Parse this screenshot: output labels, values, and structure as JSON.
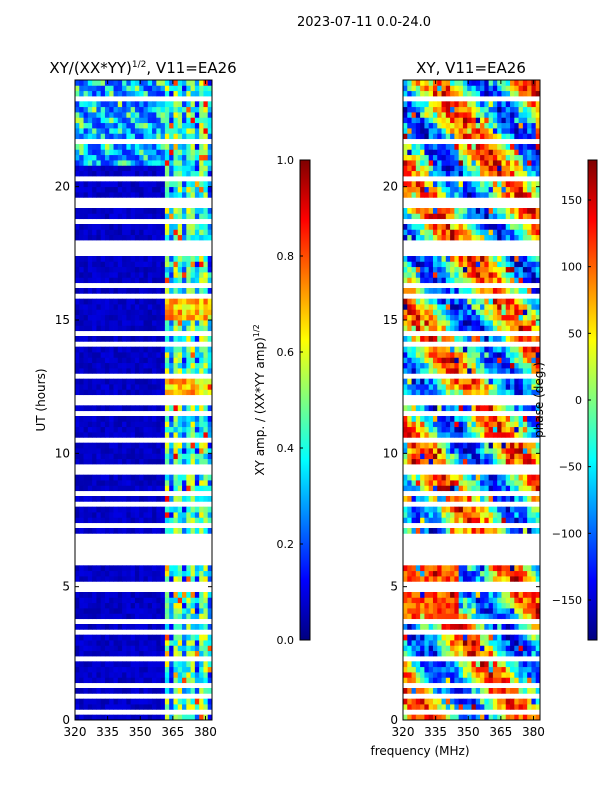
{
  "suptitle": "2023-07-11 0.0-24.0",
  "shared_xlabel": "frequency (MHz)",
  "colormap": [
    "#00007f",
    "#0000ff",
    "#007fff",
    "#00ffff",
    "#7fff7f",
    "#ffff00",
    "#ff7f00",
    "#ff0000",
    "#7f0000"
  ],
  "chart_data": [
    {
      "type": "heatmap",
      "title": "XY/(XX*YY)^1/2, V11=EA26",
      "title_main": "XY/(XX*YY)",
      "title_sup": "1/2",
      "title_tail": ", V11=EA26",
      "xlabel": "",
      "ylabel": "UT (hours)",
      "xlim": [
        320,
        383
      ],
      "ylim": [
        0,
        24
      ],
      "xticks": [
        "320",
        "335",
        "350",
        "365",
        "380"
      ],
      "yticks": [
        "0",
        "5",
        "10",
        "15",
        "20"
      ],
      "xtick_values": [
        320,
        335,
        350,
        365,
        380
      ],
      "ytick_values": [
        0,
        5,
        10,
        15,
        20
      ],
      "colorbar": {
        "label": "XY amp. / (XX*YY amp)^1/2",
        "label_main": "XY amp. / (XX*YY amp)",
        "label_sup": "1/2",
        "range": [
          0.0,
          1.0
        ],
        "ticks": [
          "0.0",
          "0.2",
          "0.4",
          "0.6",
          "0.8",
          "1.0"
        ],
        "tick_values": [
          0.0,
          0.2,
          0.4,
          0.6,
          0.8,
          1.0
        ]
      },
      "flagged_times_hours": [
        0.3,
        0.85,
        1.4,
        2.3,
        3.3,
        3.65,
        5.0,
        5.9,
        6.1,
        6.3,
        6.5,
        6.7,
        6.9,
        7.3,
        8.1,
        8.5,
        9.4,
        10.5,
        11.5,
        11.8,
        12.0,
        12.9,
        14.1,
        14.5,
        15.8,
        16.3,
        17.5,
        17.8,
        18.0,
        18.6,
        19.3,
        19.5,
        20.4,
        20.6,
        21.6,
        23.3
      ]
    },
    {
      "type": "heatmap",
      "title": "XY, V11=EA26",
      "xlabel": "",
      "ylabel": "",
      "xlim": [
        320,
        383
      ],
      "ylim": [
        0,
        24
      ],
      "xticks": [
        "320",
        "335",
        "350",
        "365",
        "380"
      ],
      "yticks": [
        "0",
        "5",
        "10",
        "15",
        "20"
      ],
      "xtick_values": [
        320,
        335,
        350,
        365,
        380
      ],
      "ytick_values": [
        0,
        5,
        10,
        15,
        20
      ],
      "colorbar": {
        "label": "phase (deg.)",
        "range": [
          -180,
          180
        ],
        "ticks": [
          "−150",
          "−100",
          "−50",
          "0",
          "50",
          "100",
          "150"
        ],
        "tick_values": [
          -150,
          -100,
          -50,
          0,
          50,
          100,
          150
        ]
      },
      "flagged_times_hours": [
        0.3,
        0.85,
        1.4,
        2.3,
        3.3,
        3.65,
        5.0,
        5.9,
        6.1,
        6.3,
        6.5,
        6.7,
        6.9,
        7.3,
        8.1,
        8.5,
        9.4,
        10.5,
        11.5,
        11.8,
        12.0,
        12.9,
        14.1,
        14.5,
        15.8,
        16.3,
        17.5,
        17.8,
        18.0,
        18.6,
        19.3,
        19.5,
        20.4,
        20.6,
        21.6,
        23.3
      ]
    }
  ]
}
